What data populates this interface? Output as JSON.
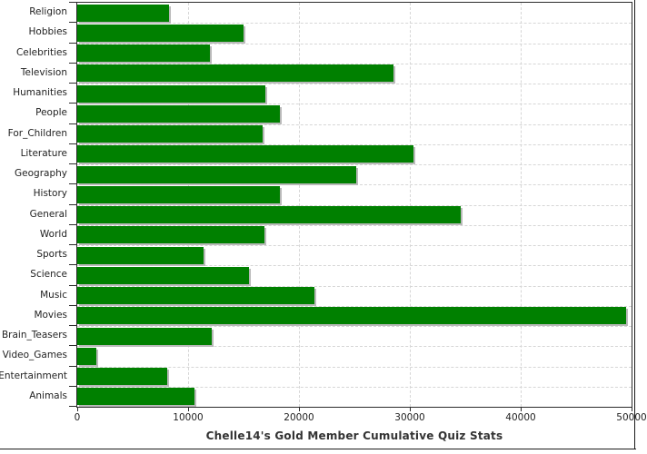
{
  "chart_data": {
    "type": "bar",
    "orientation": "horizontal",
    "title": "Chelle14's Gold Member Cumulative Quiz Stats",
    "xlabel": "",
    "ylabel": "",
    "categories": [
      "Religion",
      "Hobbies",
      "Celebrities",
      "Television",
      "Humanities",
      "People",
      "For_Children",
      "Literature",
      "Geography",
      "History",
      "General",
      "World",
      "Sports",
      "Science",
      "Music",
      "Movies",
      "Brain_Teasers",
      "Video_Games",
      "Entertainment",
      "Animals"
    ],
    "values": [
      8300,
      15000,
      12000,
      28500,
      17000,
      18300,
      16700,
      30300,
      25200,
      18300,
      34600,
      16900,
      11400,
      15500,
      21400,
      49500,
      12100,
      1700,
      8100,
      10600
    ],
    "xlim": [
      0,
      50000
    ],
    "xticks": [
      0,
      10000,
      20000,
      30000,
      40000,
      50000
    ],
    "xtick_labels": [
      "0",
      "10000",
      "20000",
      "30000",
      "40000",
      "50000"
    ],
    "grid": true,
    "legend": false,
    "colors": {
      "bar": "#008000",
      "bar_shadow": "#b9b9b9",
      "grid": "#d6d6d6",
      "axis": "#2b2b2b",
      "text": "#1f1f1f",
      "title": "#333333",
      "background": "#ffffff"
    }
  }
}
